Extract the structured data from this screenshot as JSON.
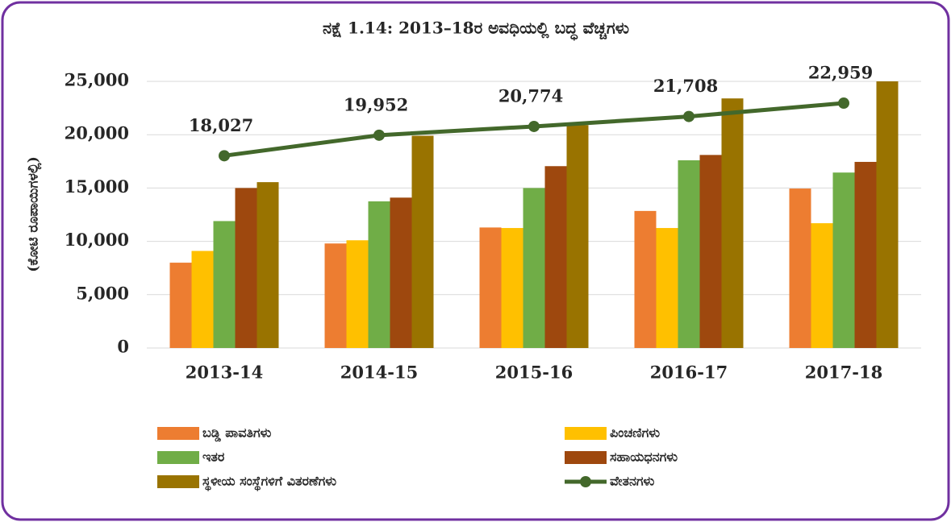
{
  "chart_data": {
    "type": "bar",
    "title": "ನಕ್ಷೆ 1.14: 2013–18ರ ಅವಧಿಯಲ್ಲಿ ಬದ್ಧ ವೆಚ್ಚಗಳು",
    "ylabel": "(ಕೋಟಿ ರೂಪಾಯಿಗಳಲ್ಲಿ)",
    "categories": [
      "2013-14",
      "2014-15",
      "2015-16",
      "2016-17",
      "2017-18"
    ],
    "ylim": [
      0,
      25000
    ],
    "yticks": [
      0,
      {
        "value": 5000,
        "label": "5,000"
      },
      {
        "value": 10000,
        "label": "10,000"
      },
      {
        "value": 15000,
        "label": "15,000"
      },
      {
        "value": 20000,
        "label": "20,000"
      },
      {
        "value": 25000,
        "label": "25,000"
      }
    ],
    "grid": true,
    "series": [
      {
        "name": "ಬಡ್ಡಿ ಪಾವತಿಗಳು",
        "color": "#ed7d31",
        "values": [
          8000,
          9800,
          11300,
          12850,
          14950
        ]
      },
      {
        "name": "ಪಿಂಚಣಿಗಳು",
        "color": "#ffc000",
        "values": [
          9100,
          10100,
          11250,
          11250,
          11700
        ]
      },
      {
        "name": "ಇತರ",
        "color": "#70ad47",
        "values": [
          11900,
          13750,
          15000,
          17600,
          16450
        ]
      },
      {
        "name": "ಸಹಾಯಧನಗಳು",
        "color": "#9e480e",
        "values": [
          15000,
          14100,
          17050,
          18100,
          17450
        ]
      },
      {
        "name": "ಸ್ಥಳೀಯ ಸಂಸ್ಥೆಗಳಿಗೆ ವಿತರಣೆಗಳು",
        "color": "#997300",
        "values": [
          15550,
          19900,
          20900,
          23400,
          25000
        ]
      },
      {
        "name": "ವೇತನಗಳು",
        "color": "#43682b",
        "type": "line",
        "values": [
          18027,
          19952,
          20774,
          21708,
          22959
        ],
        "value_labels": [
          "18,027",
          "19,952",
          "20,774",
          "21,708",
          "22,959"
        ]
      }
    ]
  }
}
